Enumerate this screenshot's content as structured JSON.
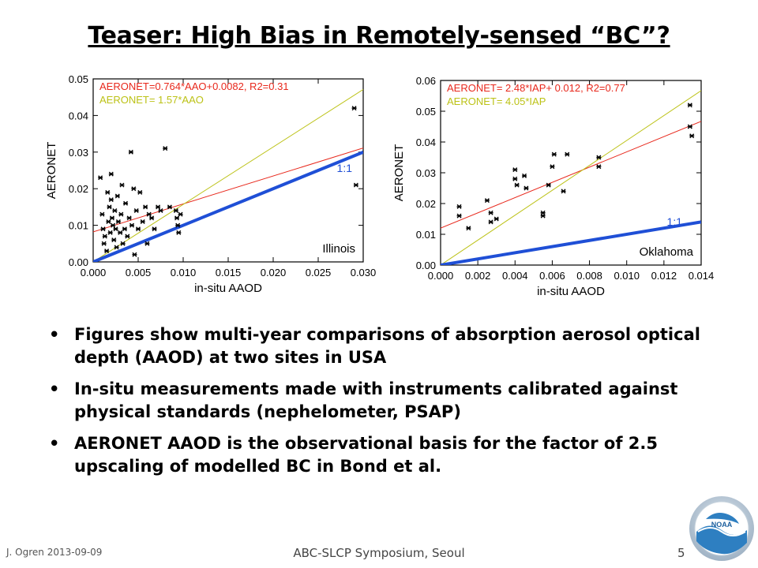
{
  "slide": {
    "title": "Teaser: High Bias in Remotely-sensed “BC”?",
    "bullets": [
      "Figures show multi-year comparisons of absorption aerosol optical depth (AAOD) at two sites in USA",
      "In-situ measurements made with instruments calibrated against physical standards (nephelometer, PSAP)",
      "AERONET AAOD is the observational basis for the factor of 2.5 upscaling of modelled BC in Bond et al."
    ],
    "bullet_glyph": "•",
    "footer": {
      "author_date": "J. Ogren  2013-09-09",
      "event": "ABC-SLCP Symposium, Seoul",
      "page": "5"
    },
    "logo": {
      "text": "NOAA",
      "icon": "noaa-logo"
    }
  },
  "colors": {
    "red_fit": "#e8281c",
    "yellow_fit": "#bcc216",
    "one_to_one": "#1f4fd6",
    "points": "#000000"
  },
  "chart_data": [
    {
      "type": "scatter",
      "site_label": "Illinois",
      "xlabel": "in-situ AAOD",
      "ylabel": "AERONET",
      "xlim": [
        0,
        0.03
      ],
      "ylim": [
        0,
        0.05
      ],
      "xticks": [
        "0.000",
        "0.005",
        "0.010",
        "0.015",
        "0.020",
        "0.025",
        "0.030"
      ],
      "yticks": [
        "0.00",
        "0.01",
        "0.02",
        "0.03",
        "0.04",
        "0.05"
      ],
      "fits": [
        {
          "label": "AERONET=0.764*AAO+0.0082, R2=0.31",
          "slope": 0.764,
          "intercept": 0.0082,
          "color": "#e8281c"
        },
        {
          "label": "AERONET= 1.57*AAO",
          "slope": 1.57,
          "intercept": 0,
          "color": "#bcc216"
        }
      ],
      "one_to_one_label": "1:1",
      "points": [
        [
          0.0008,
          0.023
        ],
        [
          0.001,
          0.013
        ],
        [
          0.0011,
          0.009
        ],
        [
          0.0012,
          0.005
        ],
        [
          0.0013,
          0.007
        ],
        [
          0.0015,
          0.003
        ],
        [
          0.0016,
          0.019
        ],
        [
          0.0017,
          0.011
        ],
        [
          0.0018,
          0.015
        ],
        [
          0.0019,
          0.008
        ],
        [
          0.002,
          0.024
        ],
        [
          0.002,
          0.017
        ],
        [
          0.0021,
          0.012
        ],
        [
          0.0022,
          0.01
        ],
        [
          0.0023,
          0.006
        ],
        [
          0.0024,
          0.014
        ],
        [
          0.0025,
          0.009
        ],
        [
          0.0026,
          0.004
        ],
        [
          0.0027,
          0.018
        ],
        [
          0.0028,
          0.011
        ],
        [
          0.003,
          0.008
        ],
        [
          0.0031,
          0.013
        ],
        [
          0.0032,
          0.021
        ],
        [
          0.0033,
          0.005
        ],
        [
          0.0035,
          0.009
        ],
        [
          0.0036,
          0.016
        ],
        [
          0.0038,
          0.007
        ],
        [
          0.004,
          0.012
        ],
        [
          0.0042,
          0.03
        ],
        [
          0.0043,
          0.01
        ],
        [
          0.0045,
          0.02
        ],
        [
          0.0046,
          0.002
        ],
        [
          0.0048,
          0.014
        ],
        [
          0.005,
          0.009
        ],
        [
          0.0052,
          0.019
        ],
        [
          0.0055,
          0.011
        ],
        [
          0.0058,
          0.015
        ],
        [
          0.006,
          0.005
        ],
        [
          0.0062,
          0.013
        ],
        [
          0.0065,
          0.012
        ],
        [
          0.0068,
          0.009
        ],
        [
          0.0072,
          0.015
        ],
        [
          0.0075,
          0.014
        ],
        [
          0.008,
          0.031
        ],
        [
          0.0085,
          0.015
        ],
        [
          0.0092,
          0.014
        ],
        [
          0.0093,
          0.012
        ],
        [
          0.0094,
          0.01
        ],
        [
          0.0095,
          0.008
        ],
        [
          0.0097,
          0.013
        ],
        [
          0.029,
          0.042
        ],
        [
          0.0292,
          0.021
        ]
      ]
    },
    {
      "type": "scatter",
      "site_label": "Oklahoma",
      "xlabel": "in-situ AAOD",
      "ylabel": "AERONET",
      "xlim": [
        0,
        0.014
      ],
      "ylim": [
        0,
        0.06
      ],
      "xticks": [
        "0.000",
        "0.002",
        "0.004",
        "0.006",
        "0.008",
        "0.010",
        "0.012",
        "0.014"
      ],
      "yticks": [
        "0.00",
        "0.01",
        "0.02",
        "0.03",
        "0.04",
        "0.05",
        "0.06"
      ],
      "fits": [
        {
          "label": "AERONET= 2.48*IAP+ 0.012, R2=0.77",
          "slope": 2.48,
          "intercept": 0.012,
          "color": "#e8281c"
        },
        {
          "label": "AERONET= 4.05*IAP",
          "slope": 4.05,
          "intercept": 0,
          "color": "#bcc216"
        }
      ],
      "one_to_one_label": "1:1",
      "points": [
        [
          0.001,
          0.019
        ],
        [
          0.001,
          0.016
        ],
        [
          0.0015,
          0.012
        ],
        [
          0.0025,
          0.021
        ],
        [
          0.0027,
          0.017
        ],
        [
          0.0027,
          0.014
        ],
        [
          0.003,
          0.015
        ],
        [
          0.004,
          0.031
        ],
        [
          0.004,
          0.028
        ],
        [
          0.0041,
          0.026
        ],
        [
          0.0045,
          0.029
        ],
        [
          0.0046,
          0.025
        ],
        [
          0.0055,
          0.017
        ],
        [
          0.0055,
          0.016
        ],
        [
          0.0058,
          0.026
        ],
        [
          0.006,
          0.032
        ],
        [
          0.0061,
          0.036
        ],
        [
          0.0066,
          0.024
        ],
        [
          0.0068,
          0.036
        ],
        [
          0.0085,
          0.035
        ],
        [
          0.0085,
          0.032
        ],
        [
          0.0134,
          0.052
        ],
        [
          0.0134,
          0.045
        ],
        [
          0.0135,
          0.042
        ]
      ]
    }
  ]
}
